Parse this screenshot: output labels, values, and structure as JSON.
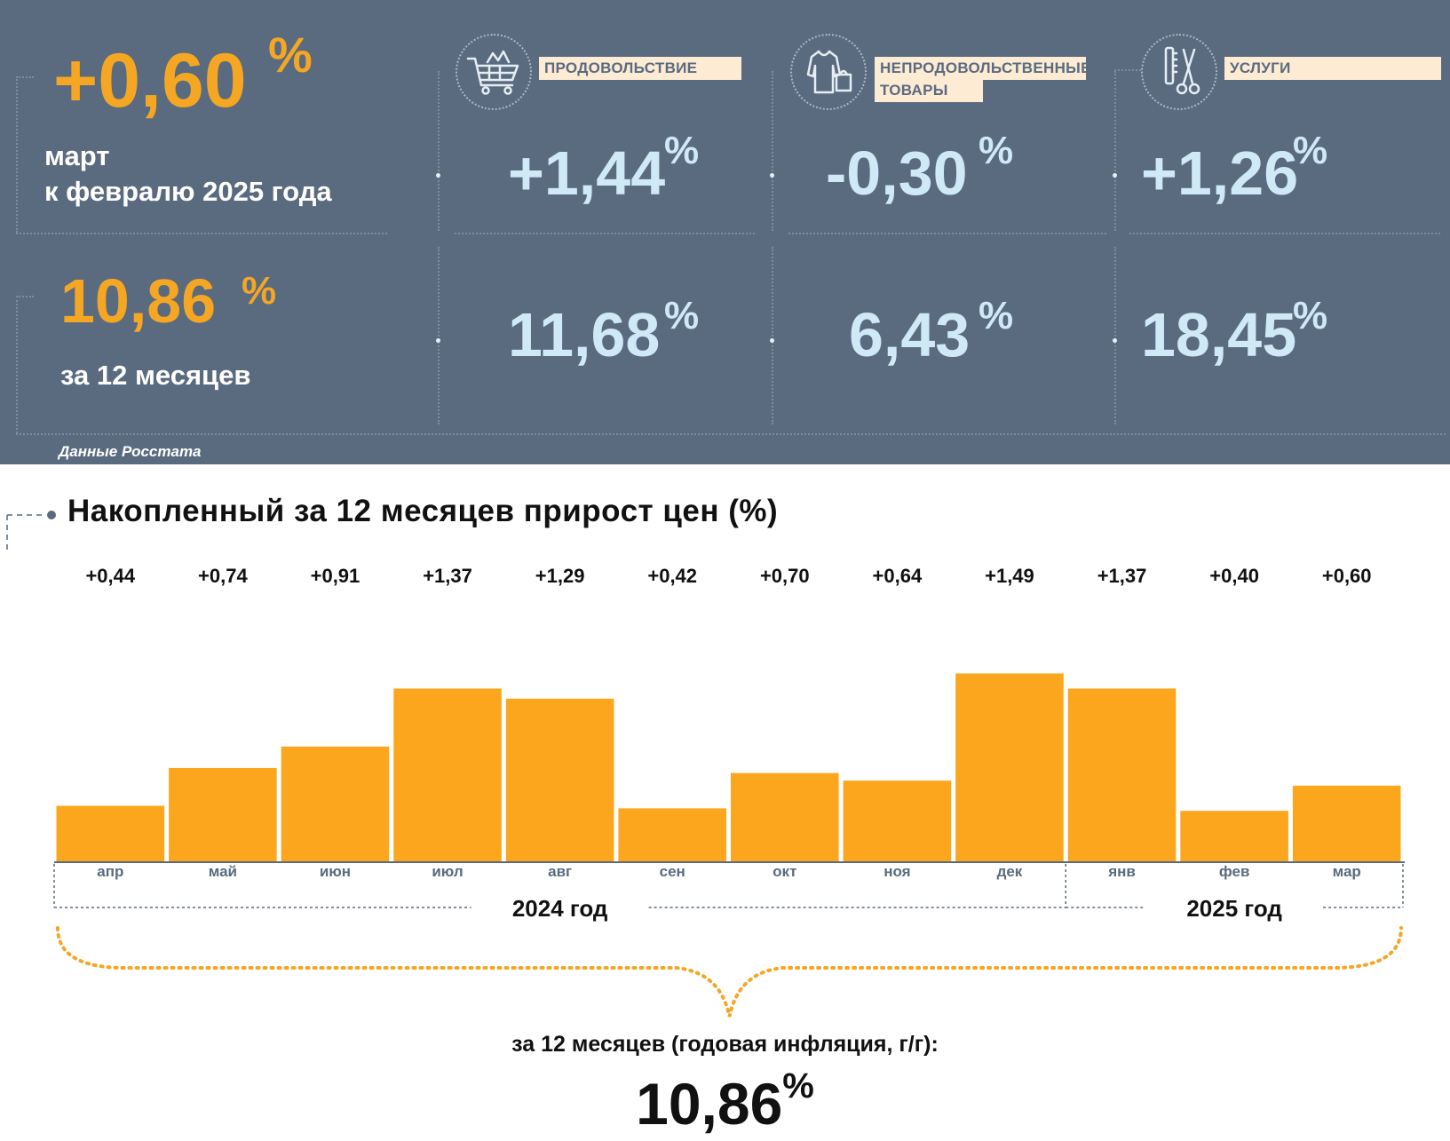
{
  "header": {
    "monthly": {
      "value": "+0,60",
      "unit": "%",
      "caption_line1": "март",
      "caption_line2": "к февралю 2025 года"
    },
    "annual": {
      "value": "10,86",
      "unit": "%",
      "caption": "за 12 месяцев"
    },
    "categories": [
      {
        "label": "ПРОДОВОЛЬСТВИЕ",
        "icon": "shopping-cart-icon",
        "monthly": "+1,44",
        "annual": "11,68",
        "unit": "%"
      },
      {
        "label_line1": "НЕПРОДОВОЛЬСТВЕННЫЕ",
        "label_line2": "ТОВАРЫ",
        "icon": "clothes-icon",
        "monthly": "-0,30",
        "annual": "6,43",
        "unit": "%"
      },
      {
        "label": "УСЛУГИ",
        "icon": "scissors-comb-icon",
        "monthly": "+1,26",
        "annual": "18,45",
        "unit": "%"
      }
    ],
    "source": "Данные Росстата"
  },
  "colors": {
    "panel": "#5a6b80",
    "accent_orange": "#f5a623",
    "bar_orange": "#fca61e",
    "value_blue": "#cfe9f7",
    "label_bg": "#fdebd3"
  },
  "chart_data": {
    "type": "bar",
    "title": "Накопленный за 12 месяцев прирост цен (%)",
    "categories": [
      "апр",
      "май",
      "июн",
      "июл",
      "авг",
      "сен",
      "окт",
      "ноя",
      "дек",
      "янв",
      "фев",
      "мар"
    ],
    "values": [
      0.44,
      0.74,
      0.91,
      1.37,
      1.29,
      0.42,
      0.7,
      0.64,
      1.49,
      1.37,
      0.4,
      0.6
    ],
    "value_labels": [
      "+0,44",
      "+0,74",
      "+0,91",
      "+1,37",
      "+1,29",
      "+0,42",
      "+0,70",
      "+0,64",
      "+1,49",
      "+1,37",
      "+0,40",
      "+0,60"
    ],
    "year_groups": [
      {
        "label": "2024 год",
        "months": 9
      },
      {
        "label": "2025 год",
        "months": 3
      }
    ],
    "ylim": [
      0,
      1.5
    ],
    "grid": false,
    "legend": "none",
    "summary_label": "за 12 месяцев (годовая инфляция, г/г):",
    "summary_value": "10,86",
    "summary_unit": "%"
  }
}
